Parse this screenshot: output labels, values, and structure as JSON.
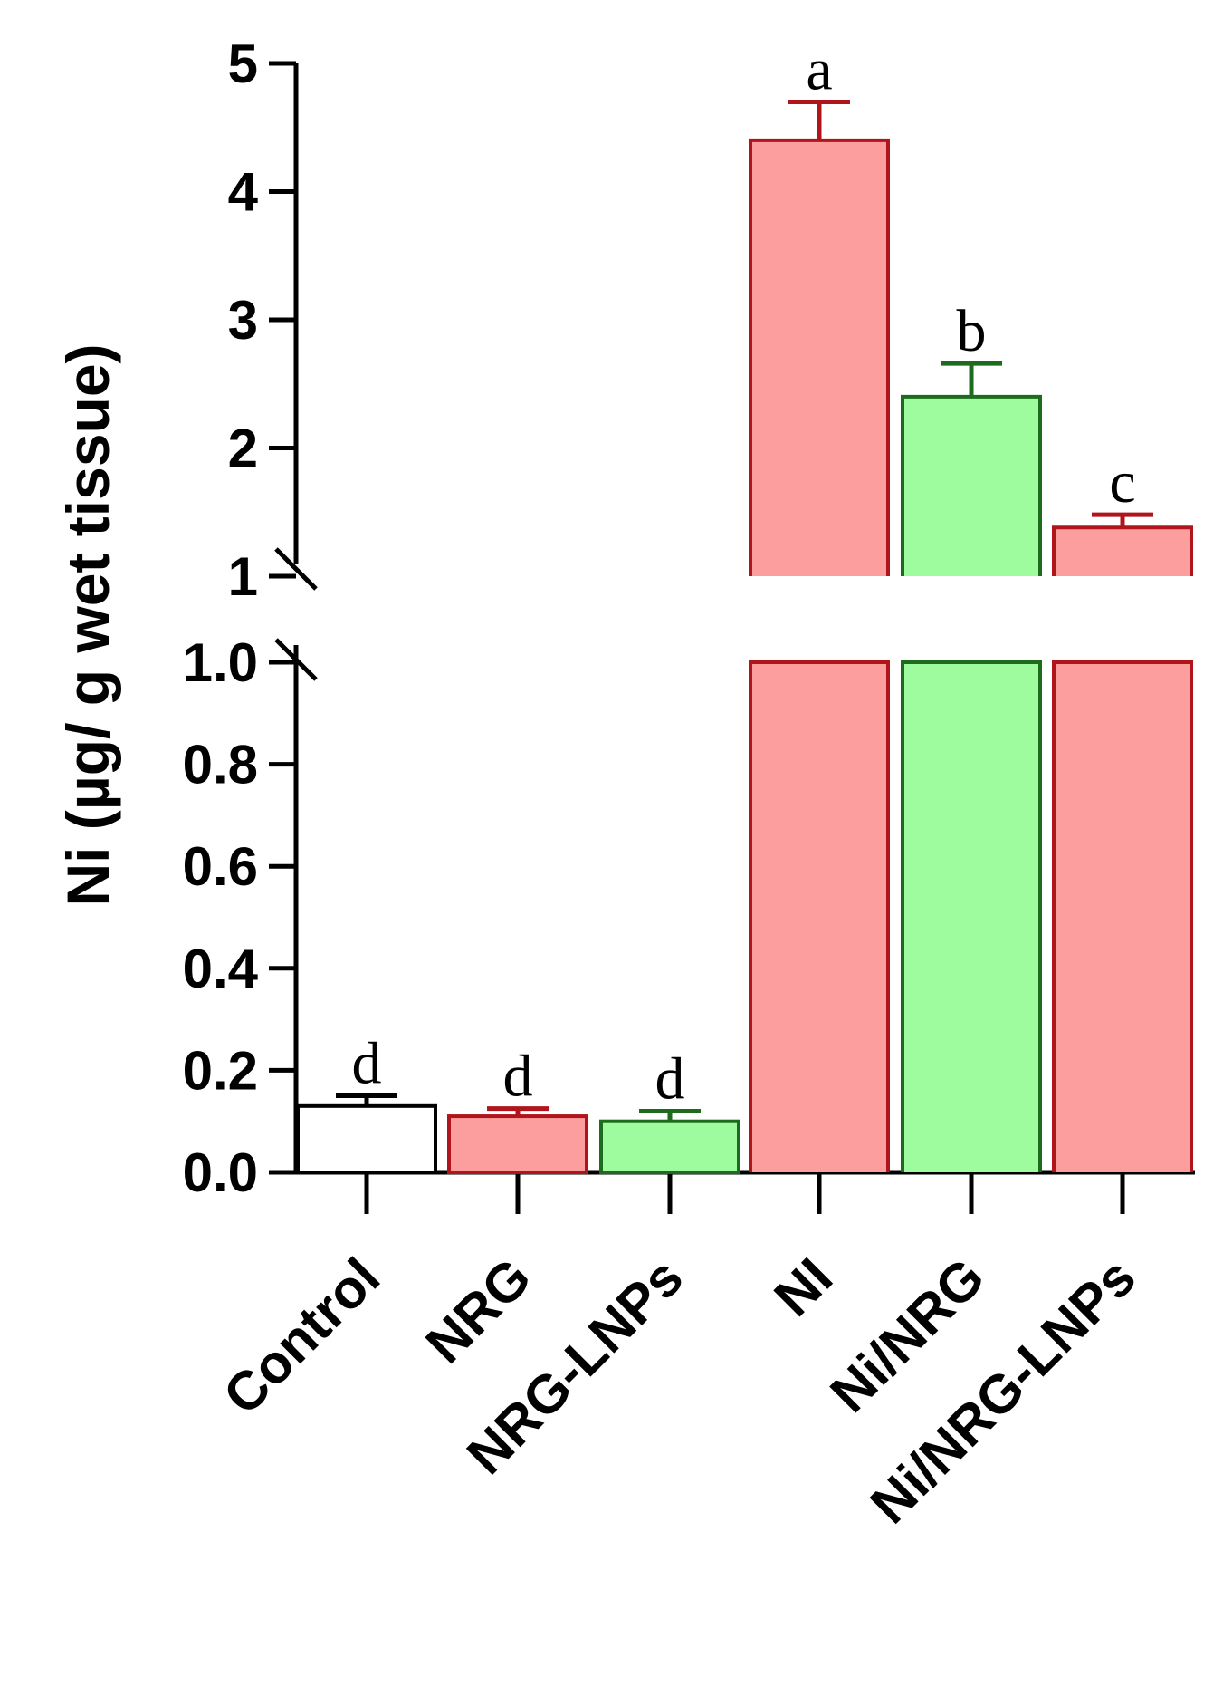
{
  "chart_data": {
    "type": "bar",
    "ylabel": "Ni (µg/ g wet tissue)",
    "categories": [
      "Control",
      "NRG",
      "NRG-LNPs",
      "NI",
      "Ni/NRG",
      "Ni/NRG-LNPs"
    ],
    "values": [
      0.13,
      0.11,
      0.1,
      4.4,
      2.4,
      1.38
    ],
    "errors": [
      0.02,
      0.015,
      0.02,
      0.3,
      0.26,
      0.1
    ],
    "significance": [
      "d",
      "d",
      "d",
      "a",
      "b",
      "c"
    ],
    "fill_colors": [
      "#ffffff",
      "#fc9e9e",
      "#9efc9e",
      "#fc9e9e",
      "#9efc9e",
      "#fc9e9e"
    ],
    "edge_colors": [
      "#000000",
      "#b0151c",
      "#1e6b1e",
      "#b0151c",
      "#1e6b1e",
      "#b0151c"
    ],
    "broken_axis": true,
    "lower_segment": {
      "ylim": [
        0,
        1.0
      ],
      "ticks": [
        "0.0",
        "0.2",
        "0.4",
        "0.6",
        "0.8",
        "1.0"
      ]
    },
    "upper_segment": {
      "ylim": [
        1,
        5
      ],
      "ticks": [
        "1",
        "2",
        "3",
        "4",
        "5"
      ]
    },
    "grid": false,
    "legend": "none"
  }
}
